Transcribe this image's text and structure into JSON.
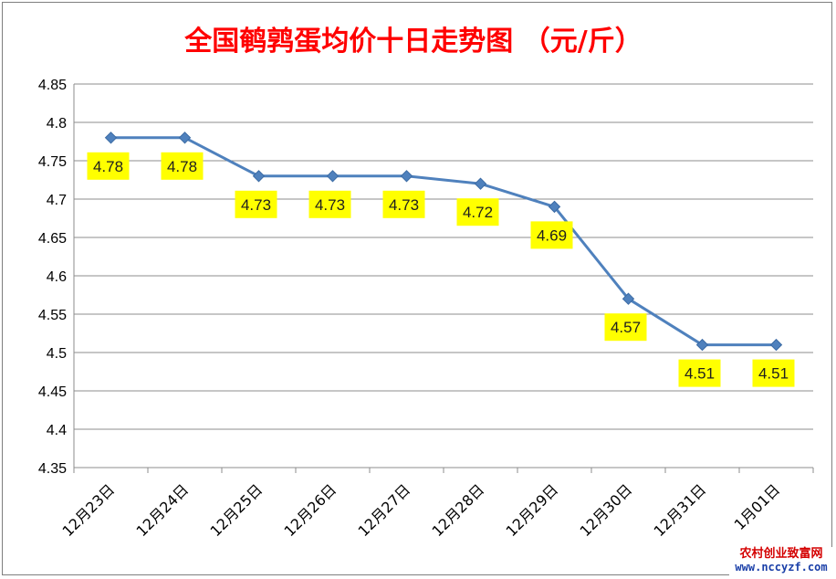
{
  "chart_data": {
    "type": "line",
    "title": "全国鹌鹑蛋均价十日走势图 （元/斤）",
    "categories": [
      "12月23日",
      "12月24日",
      "12月25日",
      "12月26日",
      "12月27日",
      "12月28日",
      "12月29日",
      "12月30日",
      "12月31日",
      "1月01日"
    ],
    "series": [
      {
        "values": [
          4.78,
          4.78,
          4.73,
          4.73,
          4.73,
          4.72,
          4.69,
          4.57,
          4.51,
          4.51
        ]
      }
    ],
    "data_labels": [
      "4.78",
      "4.78",
      "4.73",
      "4.73",
      "4.73",
      "4.72",
      "4.69",
      "4.57",
      "4.51",
      "4.51"
    ],
    "ylim": [
      4.35,
      4.85
    ],
    "ystep": 0.05,
    "yticks": [
      "4.35",
      "4.4",
      "4.45",
      "4.5",
      "4.55",
      "4.6",
      "4.65",
      "4.7",
      "4.75",
      "4.8",
      "4.85"
    ],
    "grid": true,
    "legend": "none",
    "colors": {
      "line": "#4f81bd",
      "marker": "#4f81bd",
      "label_bg": "#ffff00",
      "title": "#ff0000",
      "grid": "#8c8c8c"
    }
  },
  "watermark": {
    "name": "农村创业致富网",
    "url": "www.nccyzf.com"
  }
}
